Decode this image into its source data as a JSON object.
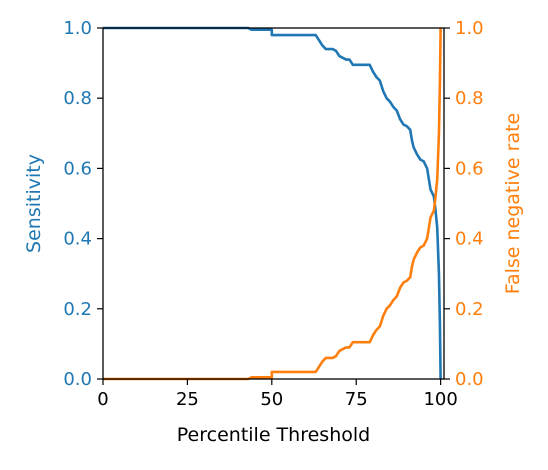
{
  "colors": {
    "sensitivity": "#1f77b4",
    "fnr": "#ff7f0e",
    "axis": "#000000",
    "background": "#ffffff"
  },
  "chart_data": {
    "type": "line",
    "xlabel": "Percentile Threshold",
    "ylabel_left": "Sensitivity",
    "ylabel_right": "False negative rate",
    "xlim": [
      0,
      101
    ],
    "ylim_left": [
      0,
      1.0
    ],
    "ylim_right": [
      0,
      1.0
    ],
    "x_ticks": [
      0,
      25,
      50,
      75,
      100
    ],
    "x_tick_labels": [
      "0",
      "25",
      "50",
      "75",
      "100"
    ],
    "y_ticks_left": [
      0,
      0.2,
      0.4,
      0.6,
      0.8,
      1.0
    ],
    "y_tick_labels_left": [
      "0.0",
      "0.2",
      "0.4",
      "0.6",
      "0.8",
      "1.0"
    ],
    "y_ticks_right": [
      0,
      0.2,
      0.4,
      0.6,
      0.8,
      1.0
    ],
    "y_tick_labels_right": [
      "0.0",
      "0.2",
      "0.4",
      "0.6",
      "0.8",
      "1.0"
    ],
    "grid": false,
    "series": [
      {
        "axis": "left",
        "points": [
          [
            0,
            1.0
          ],
          [
            43,
            1.0
          ],
          [
            44,
            0.995
          ],
          [
            50,
            0.995
          ],
          [
            50,
            0.98
          ],
          [
            63,
            0.98
          ],
          [
            64,
            0.965
          ],
          [
            65,
            0.95
          ],
          [
            66,
            0.94
          ],
          [
            68,
            0.94
          ],
          [
            69,
            0.935
          ],
          [
            70,
            0.92
          ],
          [
            72,
            0.91
          ],
          [
            73,
            0.91
          ],
          [
            74,
            0.895
          ],
          [
            79,
            0.895
          ],
          [
            80,
            0.875
          ],
          [
            81,
            0.86
          ],
          [
            82,
            0.85
          ],
          [
            83,
            0.82
          ],
          [
            84,
            0.8
          ],
          [
            85,
            0.79
          ],
          [
            86,
            0.775
          ],
          [
            87,
            0.765
          ],
          [
            88,
            0.74
          ],
          [
            89,
            0.725
          ],
          [
            90,
            0.72
          ],
          [
            91,
            0.71
          ],
          [
            91.5,
            0.68
          ],
          [
            92,
            0.66
          ],
          [
            93,
            0.64
          ],
          [
            94,
            0.625
          ],
          [
            95,
            0.62
          ],
          [
            96,
            0.6
          ],
          [
            96.5,
            0.57
          ],
          [
            97,
            0.54
          ],
          [
            98,
            0.52
          ],
          [
            98.5,
            0.48
          ],
          [
            99,
            0.43
          ],
          [
            99.5,
            0.3
          ],
          [
            99.8,
            0.15
          ],
          [
            100,
            0.0
          ]
        ]
      },
      {
        "axis": "right",
        "points": [
          [
            0,
            0.0
          ],
          [
            43,
            0.0
          ],
          [
            44,
            0.005
          ],
          [
            50,
            0.005
          ],
          [
            50,
            0.02
          ],
          [
            63,
            0.02
          ],
          [
            64,
            0.035
          ],
          [
            65,
            0.05
          ],
          [
            66,
            0.06
          ],
          [
            68,
            0.06
          ],
          [
            69,
            0.065
          ],
          [
            70,
            0.08
          ],
          [
            72,
            0.09
          ],
          [
            73,
            0.09
          ],
          [
            74,
            0.105
          ],
          [
            79,
            0.105
          ],
          [
            80,
            0.125
          ],
          [
            81,
            0.14
          ],
          [
            82,
            0.15
          ],
          [
            83,
            0.18
          ],
          [
            84,
            0.2
          ],
          [
            85,
            0.21
          ],
          [
            86,
            0.225
          ],
          [
            87,
            0.235
          ],
          [
            88,
            0.26
          ],
          [
            89,
            0.275
          ],
          [
            90,
            0.28
          ],
          [
            91,
            0.29
          ],
          [
            91.5,
            0.32
          ],
          [
            92,
            0.34
          ],
          [
            93,
            0.36
          ],
          [
            94,
            0.375
          ],
          [
            95,
            0.38
          ],
          [
            96,
            0.4
          ],
          [
            96.5,
            0.43
          ],
          [
            97,
            0.46
          ],
          [
            98,
            0.48
          ],
          [
            98.5,
            0.52
          ],
          [
            99,
            0.57
          ],
          [
            99.5,
            0.7
          ],
          [
            99.8,
            0.85
          ],
          [
            100,
            1.0
          ]
        ]
      }
    ]
  }
}
